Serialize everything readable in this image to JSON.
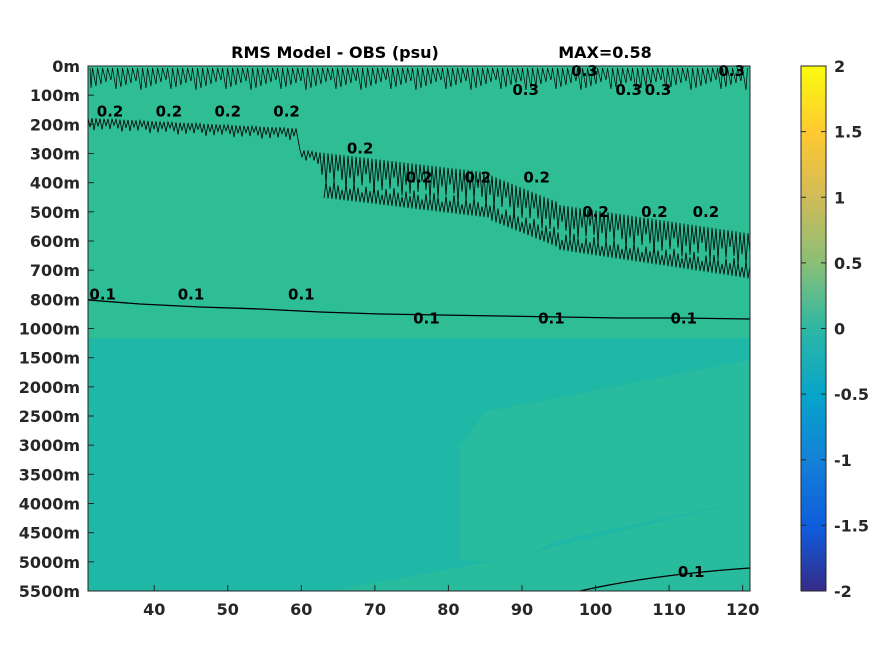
{
  "chart_data": {
    "type": "heatmap",
    "title": "RMS Model - OBS (psu)",
    "max_label": "MAX=0.58",
    "x_ticks": [
      40,
      50,
      60,
      70,
      80,
      90,
      100,
      110,
      120
    ],
    "xlim": [
      31,
      121
    ],
    "y_tick_labels": [
      "0m",
      "100m",
      "200m",
      "300m",
      "400m",
      "500m",
      "600m",
      "700m",
      "800m",
      "1000m",
      "1500m",
      "2000m",
      "2500m",
      "3000m",
      "3500m",
      "4000m",
      "4500m",
      "5000m",
      "5500m"
    ],
    "colorbar": {
      "ticks": [
        2,
        1.5,
        1,
        0.5,
        0,
        -0.5,
        -1,
        -1.5,
        -2
      ],
      "range": [
        -2,
        2
      ],
      "colormap": "parula"
    },
    "contour_labels": [
      {
        "text": "0.3",
        "x": 90.5,
        "level": "100m"
      },
      {
        "text": "0.3",
        "x": 98.5,
        "level": "0m"
      },
      {
        "text": "0.3",
        "x": 104.5,
        "level": "100m"
      },
      {
        "text": "0.3",
        "x": 108.5,
        "level": "100m"
      },
      {
        "text": "0.3",
        "x": 118.5,
        "level": "0m"
      },
      {
        "text": "0.2",
        "x": 34,
        "level": "200m"
      },
      {
        "text": "0.2",
        "x": 42,
        "level": "200m"
      },
      {
        "text": "0.2",
        "x": 50,
        "level": "200m"
      },
      {
        "text": "0.2",
        "x": 58,
        "level": "200m"
      },
      {
        "text": "0.2",
        "x": 68,
        "level": "300m"
      },
      {
        "text": "0.2",
        "x": 76,
        "level": "400m"
      },
      {
        "text": "0.2",
        "x": 84,
        "level": "400m"
      },
      {
        "text": "0.2",
        "x": 92,
        "level": "400m"
      },
      {
        "text": "0.2",
        "x": 100,
        "level": "500m"
      },
      {
        "text": "0.2",
        "x": 108,
        "level": "500m"
      },
      {
        "text": "0.2",
        "x": 115,
        "level": "500m"
      },
      {
        "text": "0.1",
        "x": 33,
        "level": "800m"
      },
      {
        "text": "0.1",
        "x": 45,
        "level": "800m"
      },
      {
        "text": "0.1",
        "x": 60,
        "level": "800m"
      },
      {
        "text": "0.1",
        "x": 77,
        "level": "1000m"
      },
      {
        "text": "0.1",
        "x": 94,
        "level": "1000m"
      },
      {
        "text": "0.1",
        "x": 112,
        "level": "1000m"
      },
      {
        "text": "0.1",
        "x": 113,
        "level": "5500m"
      }
    ],
    "field_colors": {
      "upper": "#2fbe94",
      "deep": "#1fb8a6",
      "deep_light": "#28bb9d"
    }
  }
}
